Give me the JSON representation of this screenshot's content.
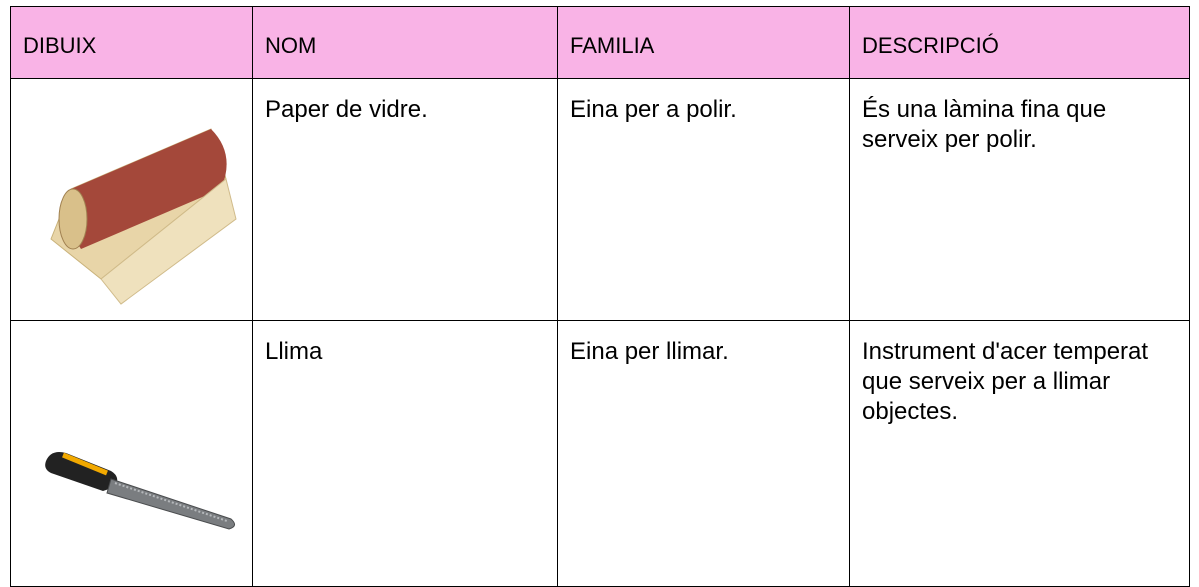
{
  "table": {
    "header": [
      "DIBUIX",
      "NOM",
      "FAMILIA",
      "DESCRIPCIÓ"
    ],
    "rows": [
      [
        "Paper de vidre.",
        "Eina per a polir.",
        "És una làmina fina que serveix per polir."
      ],
      [
        "Llima",
        "Eina per llimar.",
        "Instrument d'acer temperat que serveix per a llimar objectes."
      ]
    ]
  }
}
